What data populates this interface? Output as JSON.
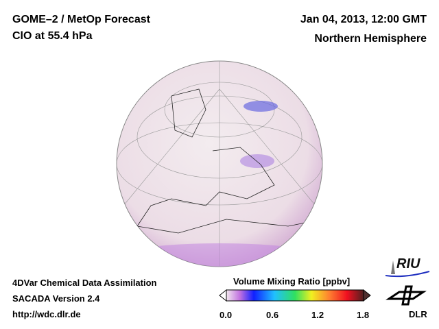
{
  "header": {
    "title": "GOME–2 / MetOp Forecast",
    "subtitle": "ClO at 55.4 hPa",
    "date": "Jan 04, 2013, 12:00 GMT",
    "region": "Northern Hemisphere"
  },
  "footer": {
    "line1": "4DVar Chemical Data Assimilation",
    "line2": "SACADA Version 2.4",
    "url": "http://wdc.dlr.de"
  },
  "colorbar": {
    "title": "Volume Mixing Ratio [ppbv]",
    "ticks": [
      "0.0",
      "0.6",
      "1.2",
      "1.8"
    ],
    "range": [
      0,
      1.8
    ]
  },
  "logos": {
    "riu": "RIU",
    "dlr": "DLR"
  }
}
